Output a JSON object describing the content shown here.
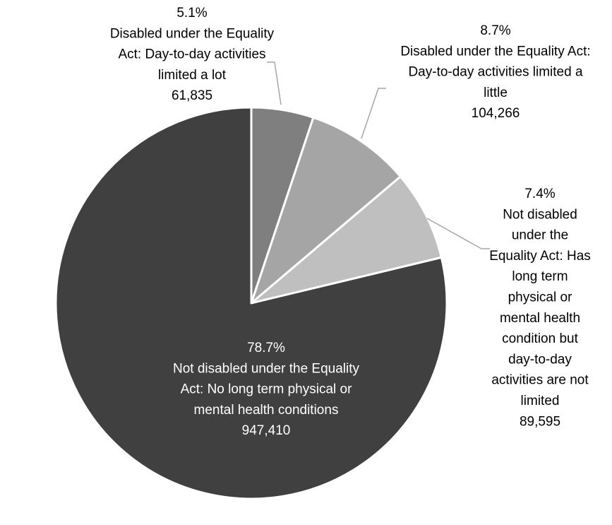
{
  "chart_data": {
    "type": "pie",
    "start_angle": "12 o'clock",
    "direction": "clockwise",
    "colors_note": "grayscale slices separated by white borders",
    "slices": [
      {
        "label": "Disabled under the Equality Act: Day-to-day activities limited a lot",
        "label_lines": [
          "Disabled under the Equality",
          "Act: Day-to-day activities",
          "limited a lot"
        ],
        "value": 61835,
        "value_text": "61,835",
        "percent_text": "5.1%",
        "color": "#7f7f7f"
      },
      {
        "label": "Disabled under the Equality Act: Day-to-day activities limited a little",
        "label_lines": [
          "Disabled under the Equality Act:",
          "Day-to-day activities limited a",
          "little"
        ],
        "value": 104266,
        "value_text": "104,266",
        "percent_text": "8.7%",
        "color": "#a5a5a5"
      },
      {
        "label": "Not disabled under the Equality Act: Has long term physical or mental health condition but day-to-day activities are not limited",
        "label_lines": [
          "Not disabled",
          "under the",
          "Equality Act: Has",
          "long term",
          "physical or",
          "mental health",
          "condition but",
          "day-to-day",
          "activities are not",
          "limited"
        ],
        "value": 89595,
        "value_text": "89,595",
        "percent_text": "7.4%",
        "color": "#bfbfbf"
      },
      {
        "label": "Not disabled under the Equality Act: No long term physical or mental health conditions",
        "label_lines": [
          "Not disabled under the Equality",
          "Act: No long term physical or",
          "mental health conditions"
        ],
        "value": 947410,
        "value_text": "947,410",
        "percent_text": "78.7%",
        "color": "#404040"
      }
    ]
  }
}
